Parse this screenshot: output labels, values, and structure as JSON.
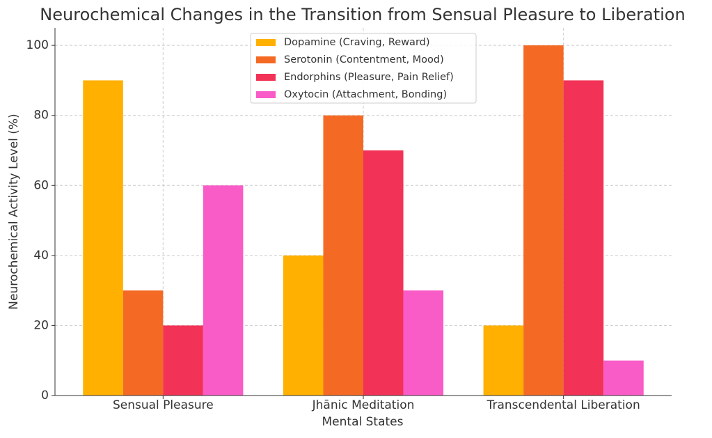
{
  "chart_data": {
    "type": "bar",
    "title": "Neurochemical Changes in the Transition from Sensual Pleasure to Liberation",
    "x_label": "Mental States",
    "y_label": "Neurochemical Activity Level (%)",
    "categories": [
      "Sensual Pleasure",
      "Jhānic Meditation",
      "Transcendental Liberation"
    ],
    "series": [
      {
        "name": "Dopamine (Craving, Reward)",
        "color": "#ffb000",
        "values": [
          90,
          40,
          20
        ]
      },
      {
        "name": "Serotonin (Contentment, Mood)",
        "color": "#f46a25",
        "values": [
          30,
          80,
          100
        ]
      },
      {
        "name": "Endorphins (Pleasure, Pain Relief)",
        "color": "#f23256",
        "values": [
          20,
          70,
          90
        ]
      },
      {
        "name": "Oxytocin (Attachment, Bonding)",
        "color": "#f95cc7",
        "values": [
          60,
          30,
          10
        ]
      }
    ],
    "ylim": [
      0,
      105
    ],
    "yticks": [
      0,
      20,
      40,
      60,
      80,
      100
    ],
    "grid": true,
    "legend": "top"
  }
}
